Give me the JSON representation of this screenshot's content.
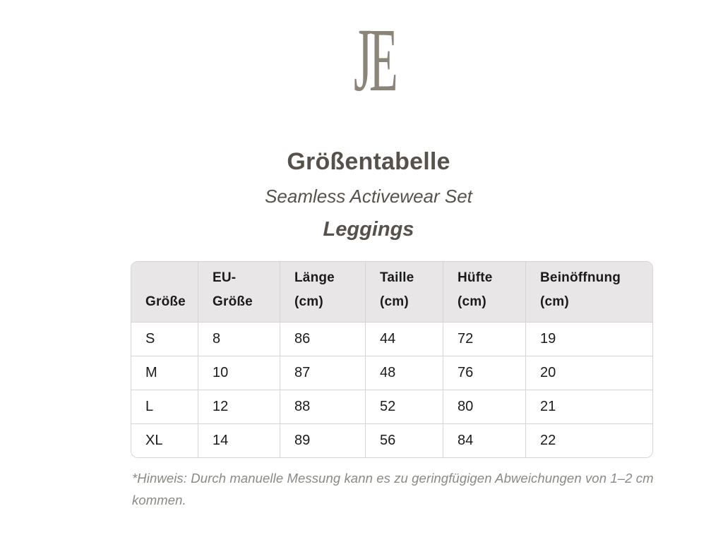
{
  "colors": {
    "logo": "#8b8478",
    "heading": "#57514b",
    "cell-text": "#1b1b1b",
    "header-bg": "#e8e6e6",
    "border": "#d7d5d2",
    "note": "#8a8984"
  },
  "logo": {
    "text": "JE"
  },
  "heading": {
    "title": "Größentabelle",
    "subtitle": "Seamless Activewear Set",
    "product": "Leggings"
  },
  "table": {
    "headers": [
      [
        "",
        "Größe"
      ],
      [
        "EU-",
        "Größe"
      ],
      [
        "Länge",
        "(cm)"
      ],
      [
        "Taille",
        "(cm)"
      ],
      [
        "Hüfte",
        "(cm)"
      ],
      [
        "Beinöffnung",
        "(cm)"
      ]
    ],
    "rows": [
      [
        "S",
        "8",
        "86",
        "44",
        "72",
        "19"
      ],
      [
        "M",
        "10",
        "87",
        "48",
        "76",
        "20"
      ],
      [
        "L",
        "12",
        "88",
        "52",
        "80",
        "21"
      ],
      [
        "XL",
        "14",
        "89",
        "56",
        "84",
        "22"
      ]
    ]
  },
  "note": {
    "line1": "*Hinweis: Durch manuelle Messung kann es zu geringfügigen Abweichungen von 1–2 cm",
    "line2": "kommen."
  }
}
